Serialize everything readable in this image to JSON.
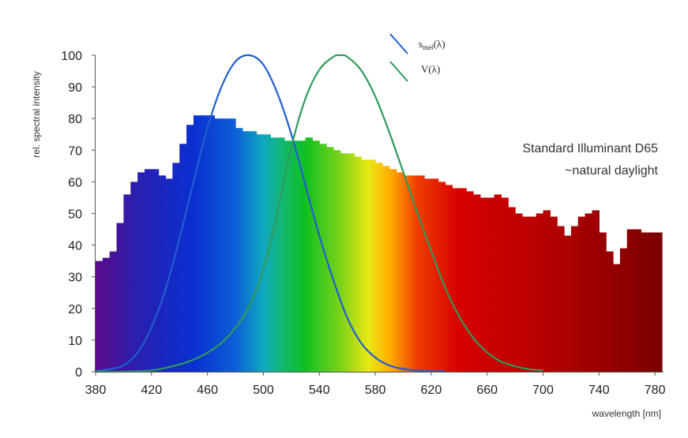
{
  "chart_data": {
    "type": "bar",
    "xlabel": "wavelength [nm]",
    "ylabel": "rel. spectral intensity",
    "xlim": [
      380,
      785
    ],
    "ylim": [
      0,
      100
    ],
    "x_ticks": [
      "380",
      "420",
      "460",
      "500",
      "540",
      "580",
      "620",
      "660",
      "700",
      "740",
      "780"
    ],
    "x_tick_values": [
      380,
      420,
      460,
      500,
      540,
      580,
      620,
      660,
      700,
      740,
      780
    ],
    "y_ticks": [
      "0",
      "10",
      "20",
      "30",
      "40",
      "50",
      "60",
      "70",
      "80",
      "90",
      "100"
    ],
    "y_tick_values": [
      0,
      10,
      20,
      30,
      40,
      50,
      60,
      70,
      80,
      90,
      100
    ],
    "grid": false,
    "bin_width_nm": 5,
    "annotation": [
      "Standard Illuminant D65",
      "~natural daylight"
    ],
    "legend_position": "top-center",
    "spectrum": {
      "x": [
        380,
        385,
        390,
        395,
        400,
        405,
        410,
        415,
        420,
        425,
        430,
        435,
        440,
        445,
        450,
        455,
        460,
        465,
        470,
        475,
        480,
        485,
        490,
        495,
        500,
        505,
        510,
        515,
        520,
        525,
        530,
        535,
        540,
        545,
        550,
        555,
        560,
        565,
        570,
        575,
        580,
        585,
        590,
        595,
        600,
        605,
        610,
        615,
        620,
        625,
        630,
        635,
        640,
        645,
        650,
        655,
        660,
        665,
        670,
        675,
        680,
        685,
        690,
        695,
        700,
        705,
        710,
        715,
        720,
        725,
        730,
        735,
        740,
        745,
        750,
        755,
        760,
        765,
        770,
        775,
        780
      ],
      "values": [
        35,
        36,
        38,
        47,
        56,
        60,
        63,
        64,
        64,
        62,
        61,
        66,
        72,
        78,
        81,
        81,
        81,
        80,
        80,
        80,
        77,
        76,
        76,
        75,
        75,
        74,
        74,
        73,
        73,
        73,
        74,
        73,
        72,
        71,
        70,
        69,
        69,
        68,
        67,
        67,
        66,
        65,
        64,
        63,
        62,
        62,
        62,
        61,
        61,
        60,
        59,
        58,
        58,
        57,
        56,
        55,
        55,
        56,
        55,
        52,
        50,
        49,
        49,
        50,
        51,
        49,
        46,
        43,
        46,
        49,
        50,
        51,
        44,
        38,
        34,
        39,
        45,
        45,
        44,
        44,
        44
      ],
      "color_stops": [
        [
          "380",
          "#5a0a8a"
        ],
        [
          "410",
          "#2a1fb0"
        ],
        [
          "450",
          "#0a2fd0"
        ],
        [
          "480",
          "#0d5fd8"
        ],
        [
          "500",
          "#10a9c0"
        ],
        [
          "515",
          "#12b86a"
        ],
        [
          "530",
          "#10c020"
        ],
        [
          "555",
          "#7cd21a"
        ],
        [
          "575",
          "#e8e812"
        ],
        [
          "590",
          "#ffb000"
        ],
        [
          "610",
          "#f03c00"
        ],
        [
          "640",
          "#d60000"
        ],
        [
          "700",
          "#b80000"
        ],
        [
          "785",
          "#7a0000"
        ]
      ]
    },
    "series": [
      {
        "name": "s_mel(λ)",
        "color": "#1f5fcf",
        "peak_nm": 490,
        "x": [
          380,
          390,
          400,
          410,
          420,
          430,
          440,
          450,
          460,
          470,
          480,
          490,
          500,
          510,
          520,
          530,
          540,
          550,
          560,
          570,
          580,
          590,
          600,
          610,
          620,
          630
        ],
        "values": [
          0.3,
          0.8,
          2,
          6,
          14,
          26,
          42,
          60,
          77,
          90,
          98,
          100,
          97,
          88,
          75,
          59,
          43,
          29,
          17,
          9,
          4.5,
          2,
          0.9,
          0.4,
          0.2,
          0.1
        ]
      },
      {
        "name": "V(λ)",
        "color": "#2f9a5a",
        "peak_nm": 555,
        "x": [
          380,
          400,
          420,
          440,
          450,
          460,
          470,
          480,
          490,
          500,
          510,
          520,
          530,
          540,
          550,
          555,
          560,
          570,
          580,
          590,
          600,
          610,
          620,
          630,
          640,
          650,
          660,
          670,
          680,
          690,
          700
        ],
        "values": [
          0,
          0.04,
          0.4,
          2.3,
          3.8,
          6,
          9.1,
          13.9,
          20.8,
          32.3,
          50.3,
          71,
          86.2,
          95.4,
          99.5,
          100,
          99.5,
          95.2,
          87,
          75.7,
          63.1,
          50.3,
          38.1,
          26.5,
          17.5,
          10.7,
          6.1,
          3.2,
          1.7,
          0.8,
          0.4
        ]
      }
    ]
  },
  "legend": {
    "smel_main": "s",
    "smel_sub": "mel",
    "smel_arg": "(λ)",
    "v_label": "V(λ)"
  }
}
